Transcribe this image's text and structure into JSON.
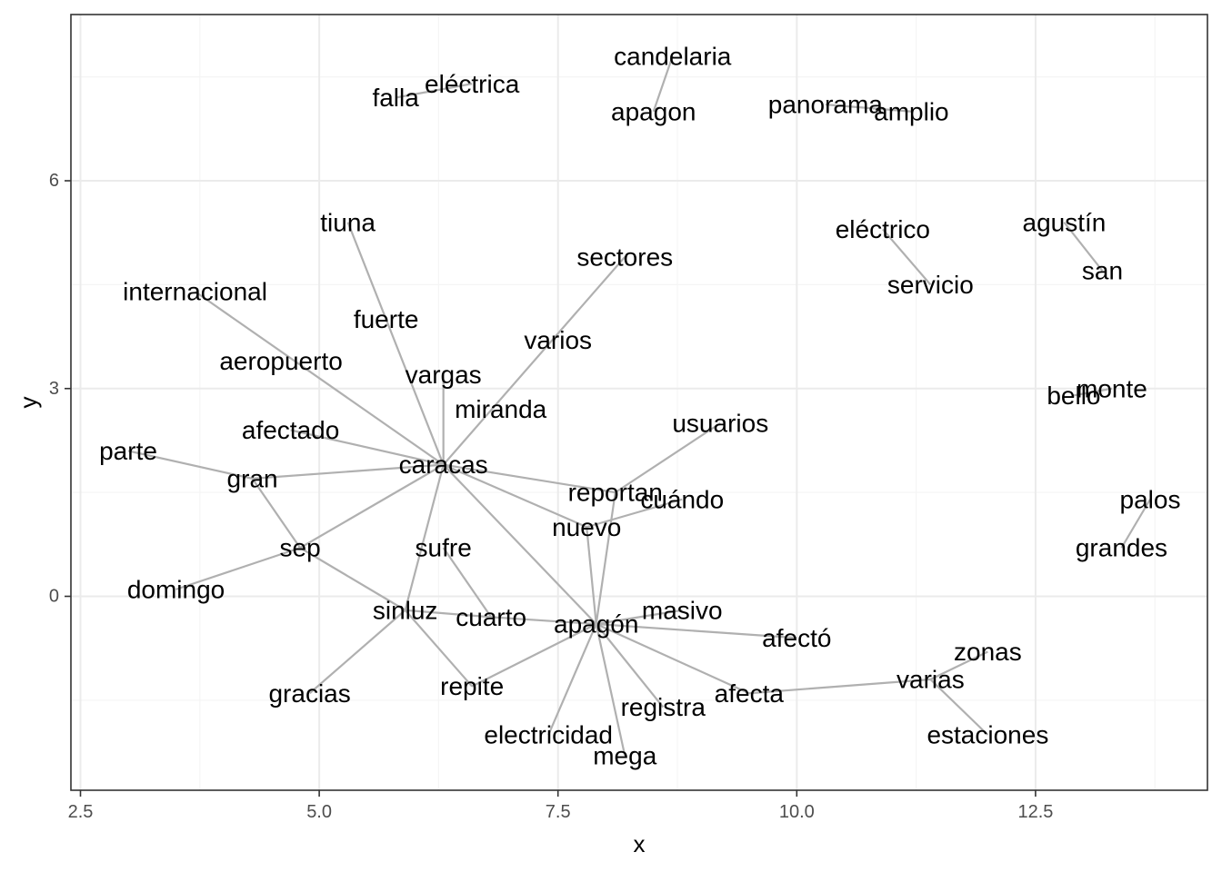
{
  "chart_data": {
    "type": "scatter",
    "subtype": "text-network",
    "xlabel": "x",
    "ylabel": "y",
    "xlim": [
      2.4,
      14.3
    ],
    "ylim": [
      -2.8,
      8.4
    ],
    "xticks": [
      2.5,
      5.0,
      7.5,
      10.0,
      12.5
    ],
    "xtick_labels": [
      "2.5",
      "5.0",
      "7.5",
      "10.0",
      "12.5"
    ],
    "yticks": [
      0,
      3,
      6
    ],
    "ytick_labels": [
      "0",
      "3",
      "6"
    ],
    "grid": true,
    "colors": {
      "edge": "#b0b0b0",
      "grid_major": "#ebebeb",
      "grid_minor": "#f5f5f5",
      "panel_border": "#333333",
      "text": "#000000"
    },
    "nodes": [
      {
        "label": "candelaria",
        "x": 8.7,
        "y": 7.8
      },
      {
        "label": "apagon",
        "x": 8.5,
        "y": 7.0
      },
      {
        "label": "falla",
        "x": 5.8,
        "y": 7.2
      },
      {
        "label": "eléctrica",
        "x": 6.6,
        "y": 7.4
      },
      {
        "label": "panorama",
        "x": 10.3,
        "y": 7.1
      },
      {
        "label": "amplio",
        "x": 11.2,
        "y": 7.0
      },
      {
        "label": "agustín",
        "x": 12.8,
        "y": 5.4
      },
      {
        "label": "san",
        "x": 13.2,
        "y": 4.7
      },
      {
        "label": "eléctrico",
        "x": 10.9,
        "y": 5.3
      },
      {
        "label": "servicio",
        "x": 11.4,
        "y": 4.5
      },
      {
        "label": "tiuna",
        "x": 5.3,
        "y": 5.4
      },
      {
        "label": "sectores",
        "x": 8.2,
        "y": 4.9
      },
      {
        "label": "internacional",
        "x": 3.7,
        "y": 4.4
      },
      {
        "label": "fuerte",
        "x": 5.7,
        "y": 4.0
      },
      {
        "label": "varios",
        "x": 7.5,
        "y": 3.7
      },
      {
        "label": "aeropuerto",
        "x": 4.6,
        "y": 3.4
      },
      {
        "label": "vargas",
        "x": 6.3,
        "y": 3.2
      },
      {
        "label": "miranda",
        "x": 6.9,
        "y": 2.7
      },
      {
        "label": "usuarios",
        "x": 9.2,
        "y": 2.5
      },
      {
        "label": "afectado",
        "x": 4.7,
        "y": 2.4
      },
      {
        "label": "parte",
        "x": 3.0,
        "y": 2.1
      },
      {
        "label": "caracas",
        "x": 6.3,
        "y": 1.9
      },
      {
        "label": "gran",
        "x": 4.3,
        "y": 1.7
      },
      {
        "label": "reportan",
        "x": 8.1,
        "y": 1.5
      },
      {
        "label": "cuándo",
        "x": 8.8,
        "y": 1.4
      },
      {
        "label": "nuevo",
        "x": 7.8,
        "y": 1.0
      },
      {
        "label": "sep",
        "x": 4.8,
        "y": 0.7
      },
      {
        "label": "sufre",
        "x": 6.3,
        "y": 0.7
      },
      {
        "label": "domingo",
        "x": 3.5,
        "y": 0.1
      },
      {
        "label": "sinluz",
        "x": 5.9,
        "y": -0.2
      },
      {
        "label": "masivo",
        "x": 8.8,
        "y": -0.2
      },
      {
        "label": "cuarto",
        "x": 6.8,
        "y": -0.3
      },
      {
        "label": "apagón",
        "x": 7.9,
        "y": -0.4
      },
      {
        "label": "afectó",
        "x": 10.0,
        "y": -0.6
      },
      {
        "label": "zonas",
        "x": 12.0,
        "y": -0.8
      },
      {
        "label": "varias",
        "x": 11.4,
        "y": -1.2
      },
      {
        "label": "gracias",
        "x": 4.9,
        "y": -1.4
      },
      {
        "label": "repite",
        "x": 6.6,
        "y": -1.3
      },
      {
        "label": "afecta",
        "x": 9.5,
        "y": -1.4
      },
      {
        "label": "registra",
        "x": 8.6,
        "y": -1.6
      },
      {
        "label": "estaciones",
        "x": 12.0,
        "y": -2.0
      },
      {
        "label": "electricidad",
        "x": 7.4,
        "y": -2.0
      },
      {
        "label": "mega",
        "x": 8.2,
        "y": -2.3
      },
      {
        "label": "grandes",
        "x": 13.4,
        "y": 0.7
      },
      {
        "label": "palos",
        "x": 13.7,
        "y": 1.4
      },
      {
        "label": "bello",
        "x": 12.9,
        "y": 2.9
      },
      {
        "label": "monte",
        "x": 13.3,
        "y": 3.0
      }
    ],
    "edges": [
      [
        "apagon",
        "candelaria"
      ],
      [
        "falla",
        "eléctrica"
      ],
      [
        "panorama",
        "amplio"
      ],
      [
        "agustín",
        "san"
      ],
      [
        "eléctrico",
        "servicio"
      ],
      [
        "bello",
        "monte"
      ],
      [
        "grandes",
        "palos"
      ],
      [
        "caracas",
        "tiuna"
      ],
      [
        "caracas",
        "sectores"
      ],
      [
        "caracas",
        "internacional"
      ],
      [
        "caracas",
        "vargas"
      ],
      [
        "caracas",
        "afectado"
      ],
      [
        "caracas",
        "gran"
      ],
      [
        "caracas",
        "sep"
      ],
      [
        "caracas",
        "reportan"
      ],
      [
        "caracas",
        "nuevo"
      ],
      [
        "caracas",
        "sinluz"
      ],
      [
        "caracas",
        "apagón"
      ],
      [
        "gran",
        "parte"
      ],
      [
        "gran",
        "sep"
      ],
      [
        "sep",
        "domingo"
      ],
      [
        "sep",
        "sinluz"
      ],
      [
        "sinluz",
        "gracias"
      ],
      [
        "sinluz",
        "repite"
      ],
      [
        "sinluz",
        "cuarto"
      ],
      [
        "sufre",
        "cuarto"
      ],
      [
        "cuarto",
        "apagón"
      ],
      [
        "reportan",
        "usuarios"
      ],
      [
        "reportan",
        "apagón"
      ],
      [
        "nuevo",
        "cuándo"
      ],
      [
        "nuevo",
        "apagón"
      ],
      [
        "apagón",
        "masivo"
      ],
      [
        "apagón",
        "afectó"
      ],
      [
        "apagón",
        "afecta"
      ],
      [
        "apagón",
        "registra"
      ],
      [
        "apagón",
        "mega"
      ],
      [
        "apagón",
        "electricidad"
      ],
      [
        "apagón",
        "repite"
      ],
      [
        "afecta",
        "varias"
      ],
      [
        "varias",
        "zonas"
      ],
      [
        "varias",
        "estaciones"
      ]
    ]
  }
}
